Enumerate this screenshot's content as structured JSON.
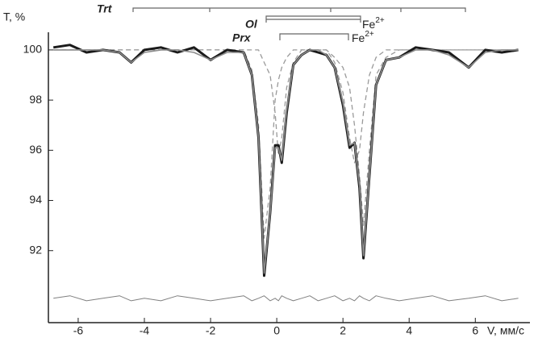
{
  "chart_data": {
    "type": "line",
    "y_label": "T, %",
    "x_label": "V, мм/с",
    "annotations": [
      {
        "text": "Trt"
      },
      {
        "text": "Ol"
      },
      {
        "text": "Fe",
        "sup": "2+"
      },
      {
        "text": "Prx"
      },
      {
        "text": "Fe",
        "sup": "2+"
      }
    ],
    "x": [
      -6.75,
      -6.25,
      -5.75,
      -5.25,
      -4.75,
      -4.4,
      -4.0,
      -3.5,
      -3.0,
      -2.5,
      -2.0,
      -1.5,
      -1.0,
      -0.75,
      -0.55,
      -0.38,
      -0.2,
      -0.05,
      0.05,
      0.15,
      0.3,
      0.5,
      0.75,
      1.0,
      1.25,
      1.5,
      1.75,
      2.0,
      2.2,
      2.35,
      2.5,
      2.62,
      2.8,
      3.0,
      3.3,
      3.7,
      4.2,
      4.7,
      5.2,
      5.8,
      6.3,
      6.8,
      7.3
    ],
    "series": [
      {
        "color": "#9a9a9a",
        "line_style": "dashed",
        "values": [
          100,
          100,
          100,
          100,
          100,
          100,
          100,
          100,
          100,
          100,
          100,
          100,
          100,
          99.2,
          97.0,
          92.5,
          94.5,
          98.0,
          98.8,
          99.3,
          99.7,
          100,
          100,
          100,
          100,
          100,
          99.7,
          99.3,
          98.5,
          97.0,
          95.0,
          93.0,
          96.0,
          99.0,
          99.7,
          100,
          100,
          100,
          100,
          100,
          100,
          100,
          100
        ]
      },
      {
        "color": "#9a9a9a",
        "line_style": "dashed",
        "values": [
          100,
          100,
          100,
          100,
          100,
          100,
          100,
          100,
          100,
          100,
          100,
          100,
          100,
          100,
          100,
          99.5,
          99.0,
          97.5,
          95.8,
          96.5,
          98.5,
          99.5,
          100,
          100,
          100,
          100,
          99.5,
          98.3,
          96.5,
          95.5,
          96.0,
          97.5,
          99.0,
          99.7,
          100,
          100,
          100,
          100,
          100,
          100,
          100,
          100,
          100
        ]
      },
      {
        "color": "#1a1a1a",
        "line_style": "solid",
        "values": [
          100.1,
          100.2,
          99.9,
          100.0,
          99.9,
          99.5,
          100.0,
          100.1,
          99.9,
          100.1,
          99.6,
          100.0,
          99.9,
          99.0,
          96.5,
          91.0,
          93.5,
          96.2,
          96.2,
          95.5,
          97.5,
          99.4,
          99.8,
          100.0,
          99.9,
          99.8,
          99.3,
          97.8,
          96.1,
          96.3,
          94.5,
          91.7,
          95.0,
          98.6,
          99.6,
          99.7,
          100.1,
          100.0,
          99.9,
          99.3,
          100.0,
          99.9,
          100.0
        ]
      },
      {
        "color": "#8c8c8c",
        "line_style": "solid",
        "values": [
          100,
          100,
          100,
          100,
          99.9,
          99.5,
          99.9,
          100,
          100,
          99.9,
          99.6,
          99.9,
          99.9,
          99.0,
          96.5,
          91.1,
          93.5,
          96.1,
          96.1,
          95.6,
          97.6,
          99.4,
          99.8,
          100,
          100,
          99.8,
          99.3,
          97.9,
          96.2,
          96.3,
          94.6,
          91.8,
          95.0,
          98.6,
          99.6,
          99.7,
          100,
          100,
          99.8,
          99.3,
          99.9,
          100,
          100
        ]
      },
      {
        "color": "#808080",
        "line_style": "solid",
        "values": [
          90.1,
          90.2,
          90.0,
          90.1,
          90.2,
          90.0,
          90.1,
          90.0,
          90.2,
          90.1,
          90.0,
          90.1,
          90.2,
          90.0,
          90.1,
          90.2,
          90.0,
          90.1,
          90.0,
          90.2,
          90.1,
          90.0,
          90.1,
          90.2,
          90.0,
          90.1,
          90.2,
          90.0,
          90.1,
          90.0,
          90.2,
          90.1,
          90.0,
          90.2,
          90.1,
          90.0,
          90.1,
          90.2,
          90.0,
          90.1,
          90.2,
          90.0,
          90.1
        ]
      }
    ],
    "xlim": [
      -6.9,
      7.65
    ],
    "ylim": [
      89.13,
      101.99
    ],
    "xticks": [
      -6,
      -4,
      -2,
      0,
      2,
      4,
      6
    ],
    "yticks": [
      92,
      94,
      96,
      98,
      100
    ],
    "grid": false
  }
}
